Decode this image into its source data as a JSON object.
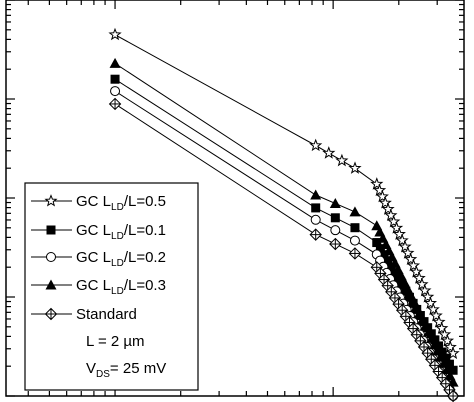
{
  "chart_data": {
    "type": "line",
    "xscale": "log",
    "yscale": "log",
    "x_decades_min": 0.5,
    "x_decades_max": 2.6,
    "y_decades_min": 0.0,
    "y_decades_max": 4.0,
    "grid": false,
    "legend_position": "lower-left",
    "legend": [
      {
        "prefix": "GC L",
        "sub": "LD",
        "suffix": "/L=0.5",
        "marker": "star"
      },
      {
        "prefix": "GC L",
        "sub": "LD",
        "suffix": "/L=0.1",
        "marker": "square-filled"
      },
      {
        "prefix": "GC L",
        "sub": "LD",
        "suffix": "/L=0.2",
        "marker": "circle-open"
      },
      {
        "prefix": "GC L",
        "sub": "LD",
        "suffix": "/L=0.3",
        "marker": "triangle-filled"
      },
      {
        "prefix": "Standard",
        "sub": "",
        "suffix": "",
        "marker": "diamond-cross"
      }
    ],
    "annotations": {
      "length": {
        "prefix": "L = 2 ",
        "unit": "µm"
      },
      "vds": {
        "prefix": "V",
        "sub": "DS",
        "suffix": "= 25 mV"
      }
    },
    "series": [
      {
        "marker": "star",
        "x": [
          1.0,
          1.92,
          2.1,
          2.2,
          2.55
        ],
        "y": [
          3.65,
          2.53,
          2.3,
          2.14,
          0.43
        ]
      },
      {
        "marker": "square-filled",
        "x": [
          1.0,
          1.92,
          2.1,
          2.2,
          2.55
        ],
        "y": [
          3.2,
          1.9,
          1.7,
          1.55,
          0.26
        ]
      },
      {
        "marker": "circle-open",
        "x": [
          1.0,
          1.92,
          2.1,
          2.2,
          2.55
        ],
        "y": [
          3.08,
          1.78,
          1.57,
          1.43,
          0.0
        ]
      },
      {
        "marker": "triangle-filled",
        "x": [
          1.0,
          1.92,
          2.1,
          2.2,
          2.55
        ],
        "y": [
          3.36,
          2.03,
          1.86,
          1.72,
          0.14
        ]
      },
      {
        "marker": "diamond-cross",
        "x": [
          1.0,
          1.92,
          2.1,
          2.2,
          2.55
        ],
        "y": [
          2.95,
          1.63,
          1.44,
          1.3,
          0.0
        ]
      }
    ]
  }
}
